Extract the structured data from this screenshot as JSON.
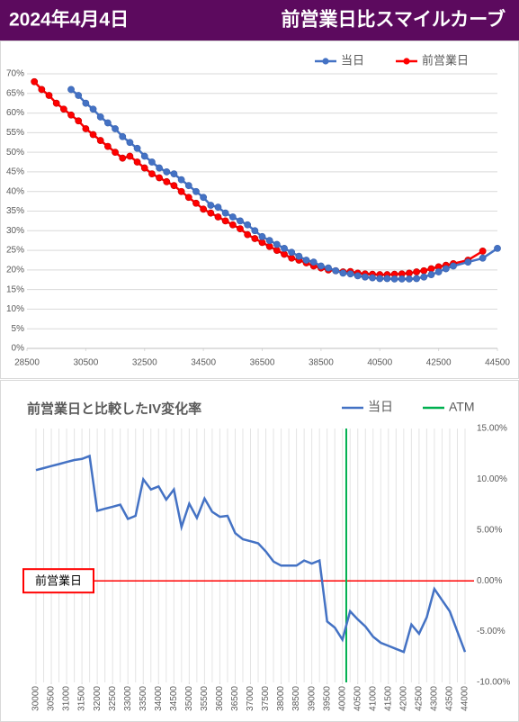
{
  "header": {
    "date": "2024年4月4日",
    "title": "前営業日比スマイルカーブ"
  },
  "chart_data": [
    {
      "type": "line",
      "markers": true,
      "grid": true,
      "legend": "top-right",
      "xlim": [
        28500,
        44500
      ],
      "xticks": [
        28500,
        30500,
        32500,
        34500,
        36500,
        38500,
        40500,
        42500,
        44500
      ],
      "ylim": [
        0,
        70
      ],
      "yticks": [
        {
          "value": 0,
          "label": "0%"
        },
        {
          "value": 5,
          "label": "5%"
        },
        {
          "value": 10,
          "label": "10%"
        },
        {
          "value": 15,
          "label": "15%"
        },
        {
          "value": 20,
          "label": "20%"
        },
        {
          "value": 25,
          "label": "25%"
        },
        {
          "value": 30,
          "label": "30%"
        },
        {
          "value": 35,
          "label": "35%"
        },
        {
          "value": 40,
          "label": "40%"
        },
        {
          "value": 45,
          "label": "45%"
        },
        {
          "value": 50,
          "label": "50%"
        },
        {
          "value": 55,
          "label": "55%"
        },
        {
          "value": 60,
          "label": "60%"
        },
        {
          "value": 65,
          "label": "65%"
        },
        {
          "value": 70,
          "label": "70%"
        }
      ],
      "series": [
        {
          "name": "当日",
          "color": "#4472c4",
          "x": [
            30000,
            30250,
            30500,
            30750,
            31000,
            31250,
            31500,
            31750,
            32000,
            32250,
            32500,
            32750,
            33000,
            33250,
            33500,
            33750,
            34000,
            34250,
            34500,
            34750,
            35000,
            35250,
            35500,
            35750,
            36000,
            36250,
            36500,
            36750,
            37000,
            37250,
            37500,
            37750,
            38000,
            38250,
            38500,
            38750,
            39000,
            39250,
            39500,
            39750,
            40000,
            40250,
            40500,
            40750,
            41000,
            41250,
            41500,
            41750,
            42000,
            42250,
            42500,
            42750,
            43000,
            43500,
            44000,
            44500
          ],
          "values": [
            66,
            64.5,
            62.5,
            61,
            59,
            57.5,
            56,
            54,
            52.5,
            51,
            49,
            47.5,
            46,
            45,
            44.5,
            43,
            41.5,
            40,
            38.5,
            36.5,
            36,
            34.5,
            33.5,
            32.5,
            31.5,
            30,
            28.5,
            27.5,
            26.5,
            25.5,
            24.5,
            23.5,
            22.5,
            22,
            21,
            20.5,
            19.8,
            19.2,
            19,
            18.5,
            18.2,
            18,
            17.8,
            17.8,
            17.7,
            17.7,
            17.7,
            17.8,
            18.2,
            18.8,
            19.5,
            20.3,
            21,
            22,
            23,
            25.5
          ]
        },
        {
          "name": "前営業日",
          "color": "#ff0000",
          "x": [
            28750,
            29000,
            29250,
            29500,
            29750,
            30000,
            30250,
            30500,
            30750,
            31000,
            31250,
            31500,
            31750,
            32000,
            32250,
            32500,
            32750,
            33000,
            33250,
            33500,
            33750,
            34000,
            34250,
            34500,
            34750,
            35000,
            35250,
            35500,
            35750,
            36000,
            36250,
            36500,
            36750,
            37000,
            37250,
            37500,
            37750,
            38000,
            38250,
            38500,
            38750,
            39000,
            39250,
            39500,
            39750,
            40000,
            40250,
            40500,
            40750,
            41000,
            41250,
            41500,
            41750,
            42000,
            42250,
            42500,
            42750,
            43000,
            43500,
            44000
          ],
          "values": [
            68,
            66,
            64.5,
            62.5,
            61,
            59.5,
            58,
            56,
            54.5,
            53,
            51.5,
            50,
            48.5,
            49,
            47.5,
            46,
            44.5,
            43.5,
            42.5,
            41.5,
            40,
            38.5,
            37,
            35.5,
            34.5,
            33.5,
            32.5,
            31.5,
            30.5,
            29,
            28,
            27,
            26,
            25,
            24,
            23,
            22.5,
            21.8,
            21,
            20.5,
            20,
            19.8,
            19.5,
            19.6,
            19.2,
            19,
            18.9,
            18.8,
            18.8,
            18.9,
            19,
            19.2,
            19.5,
            19.8,
            20.3,
            20.8,
            21.2,
            21.6,
            22.5,
            24.8
          ]
        }
      ]
    },
    {
      "type": "line",
      "markers": false,
      "title": "前営業日と比較したIV変化率",
      "xgrid": true,
      "y_axis_position": "right",
      "legend": "top-right",
      "xlim": [
        30000,
        44000
      ],
      "xticks": [
        30000,
        30500,
        31000,
        31500,
        32000,
        32500,
        33000,
        33500,
        34000,
        34500,
        35000,
        35500,
        36000,
        36500,
        37000,
        37500,
        38000,
        38500,
        39000,
        39500,
        40000,
        40500,
        41000,
        41500,
        42000,
        42500,
        43000,
        43500,
        44000
      ],
      "ylim": [
        -10,
        15
      ],
      "yticks": [
        {
          "value": 15,
          "label": "15.00%"
        },
        {
          "value": 10,
          "label": "10.00%"
        },
        {
          "value": 5,
          "label": "5.00%"
        },
        {
          "value": 0,
          "label": "0.00%"
        },
        {
          "value": -5,
          "label": "-5.00%"
        },
        {
          "value": -10,
          "label": "-10.00%"
        }
      ],
      "series": [
        {
          "name": "当日",
          "color": "#4472c4",
          "x": [
            30000,
            30250,
            30500,
            30750,
            31000,
            31250,
            31500,
            31750,
            32000,
            32250,
            32500,
            32750,
            33000,
            33250,
            33500,
            33750,
            34000,
            34250,
            34500,
            34750,
            35000,
            35250,
            35500,
            35750,
            36000,
            36250,
            36500,
            36750,
            37000,
            37250,
            37500,
            37750,
            38000,
            38250,
            38500,
            38750,
            39000,
            39250,
            39500,
            39750,
            40000,
            40250,
            40500,
            40750,
            41000,
            41250,
            41500,
            41750,
            42000,
            42250,
            42500,
            42750,
            43000,
            43250,
            43500,
            43750,
            44000
          ],
          "values": [
            10.9,
            11.1,
            11.3,
            11.5,
            11.7,
            11.9,
            12.0,
            12.3,
            6.9,
            7.1,
            7.3,
            7.5,
            6.1,
            6.4,
            10.0,
            9.0,
            9.3,
            8.0,
            9.0,
            5.3,
            7.6,
            6.2,
            8.1,
            6.8,
            6.3,
            6.4,
            4.7,
            4.1,
            3.9,
            3.7,
            2.9,
            1.9,
            1.5,
            1.5,
            1.5,
            2.0,
            1.7,
            2.0,
            -4.0,
            -4.6,
            -5.8,
            -3.0,
            -3.8,
            -4.5,
            -5.5,
            -6.1,
            -6.4,
            -6.7,
            -7.0,
            -4.3,
            -5.2,
            -3.6,
            -0.8,
            -1.9,
            -3.0,
            -5.0,
            -7.0
          ]
        }
      ],
      "vlines": [
        {
          "name": "ATM",
          "x": 40125,
          "color": "#00b050"
        }
      ],
      "hline": {
        "label": "前営業日",
        "y": 0,
        "color": "#ff0000"
      }
    }
  ]
}
